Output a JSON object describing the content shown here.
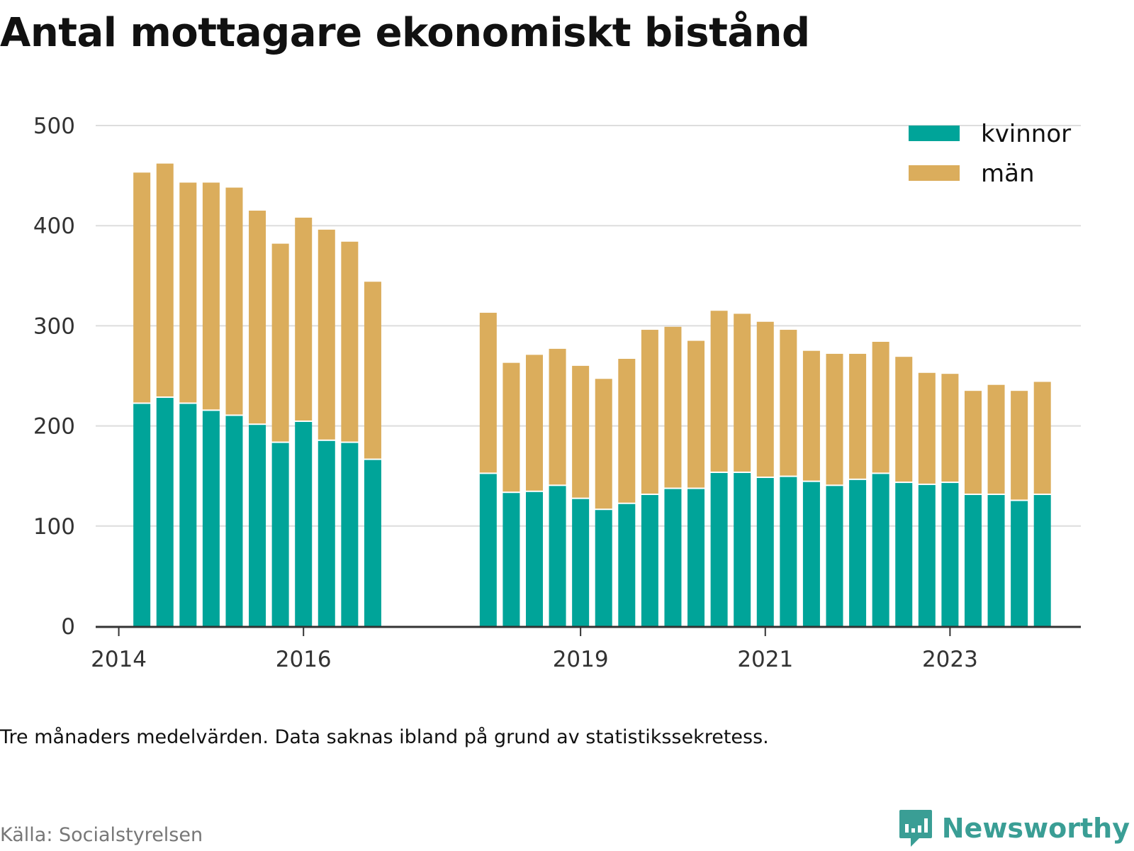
{
  "title": "Antal mottagare ekonomiskt bistånd",
  "note": "Tre månaders medelvärden. Data saknas ibland på grund av statistikssekretess.",
  "source": "Källa: Socialstyrelsen",
  "brand": {
    "name": "Newsworthy",
    "icon": "newsworthy-logo-icon",
    "color": "#3a9e95"
  },
  "colors": {
    "kvinnor": "#00a499",
    "man": "#dbad5c",
    "grid": "#dddddd",
    "axis": "#333333"
  },
  "chart_data": {
    "type": "bar",
    "stacked": true,
    "title": "Antal mottagare ekonomiskt bistånd",
    "xlabel": "",
    "ylabel": "",
    "ylim": [
      0,
      500
    ],
    "yticks": [
      0,
      100,
      200,
      300,
      400,
      500
    ],
    "xlim": [
      "2013-10",
      "2024-06"
    ],
    "xticks": [
      {
        "label": "2014",
        "date": "2014-01"
      },
      {
        "label": "2016",
        "date": "2016-01"
      },
      {
        "label": "2019",
        "date": "2019-01"
      },
      {
        "label": "2021",
        "date": "2021-01"
      },
      {
        "label": "2023",
        "date": "2023-01"
      }
    ],
    "grid": true,
    "legend_position": "top-right",
    "periods": [
      "2014-04",
      "2014-07",
      "2014-10",
      "2015-01",
      "2015-04",
      "2015-07",
      "2015-10",
      "2016-01",
      "2016-04",
      "2016-07",
      "2016-10",
      "2018-01",
      "2018-04",
      "2018-07",
      "2018-10",
      "2019-01",
      "2019-04",
      "2019-07",
      "2019-10",
      "2020-01",
      "2020-04",
      "2020-07",
      "2020-10",
      "2021-01",
      "2021-04",
      "2021-07",
      "2021-10",
      "2022-01",
      "2022-04",
      "2022-07",
      "2022-10",
      "2023-01",
      "2023-04",
      "2023-07",
      "2023-10",
      "2024-01"
    ],
    "series": [
      {
        "name": "kvinnor",
        "color": "#00a499",
        "values": [
          222,
          228,
          222,
          215,
          210,
          201,
          183,
          204,
          185,
          183,
          166,
          152,
          133,
          134,
          140,
          127,
          116,
          122,
          131,
          137,
          137,
          153,
          153,
          148,
          149,
          144,
          140,
          146,
          152,
          143,
          141,
          143,
          131,
          131,
          125,
          131
        ]
      },
      {
        "name": "män",
        "color": "#dbad5c",
        "values": [
          231,
          234,
          221,
          228,
          228,
          214,
          199,
          204,
          211,
          201,
          178,
          161,
          130,
          137,
          137,
          133,
          131,
          145,
          165,
          162,
          148,
          162,
          159,
          156,
          147,
          131,
          132,
          126,
          132,
          126,
          112,
          109,
          104,
          110,
          110,
          113
        ]
      }
    ]
  }
}
